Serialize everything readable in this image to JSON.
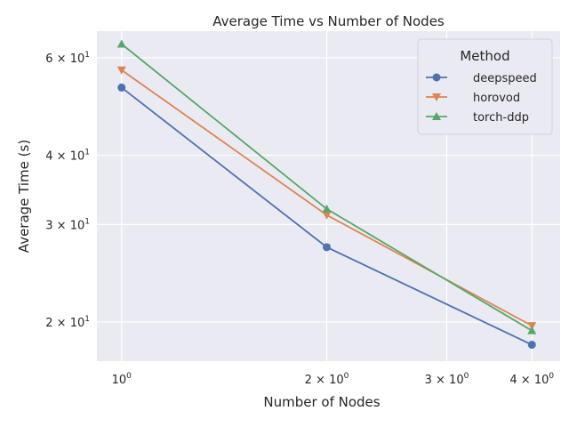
{
  "chart_data": {
    "type": "line",
    "title": "Average Time vs Number of Nodes",
    "xlabel": "Number of Nodes",
    "ylabel": "Average Time (s)",
    "x_scale": "log",
    "y_scale": "log",
    "xlim": [
      0.92,
      4.4
    ],
    "ylim": [
      17.0,
      67.0
    ],
    "grid": true,
    "x": [
      1,
      2,
      4
    ],
    "x_ticks": [
      {
        "value": 1,
        "base": "10",
        "exp": "0"
      },
      {
        "value": 2,
        "base": "2 × 10",
        "exp": "0"
      },
      {
        "value": 3,
        "base": "3 × 10",
        "exp": "0"
      },
      {
        "value": 4,
        "base": "4 × 10",
        "exp": "0"
      }
    ],
    "y_ticks": [
      {
        "value": 20,
        "base": "2 × 10",
        "exp": "1"
      },
      {
        "value": 30,
        "base": "3 × 10",
        "exp": "1"
      },
      {
        "value": 40,
        "base": "4 × 10",
        "exp": "1"
      },
      {
        "value": 60,
        "base": "6 × 10",
        "exp": "1"
      }
    ],
    "legend": {
      "title": "Method",
      "placement": "top-right"
    },
    "series": [
      {
        "name": "deepspeed",
        "values": [
          53.0,
          27.3,
          18.2
        ],
        "color": "#4c72b0",
        "marker": "circle"
      },
      {
        "name": "horovod",
        "values": [
          57.0,
          31.2,
          19.7
        ],
        "color": "#dd8452",
        "marker": "triangle-down"
      },
      {
        "name": "torch-ddp",
        "values": [
          63.5,
          32.0,
          19.3
        ],
        "color": "#55a868",
        "marker": "triangle-up"
      }
    ]
  }
}
